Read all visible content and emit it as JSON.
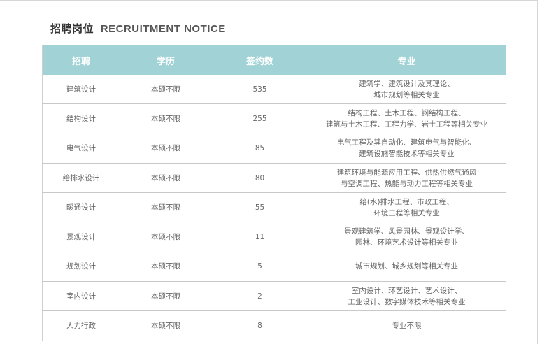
{
  "title_cn": "招聘岗位",
  "title_en": "RECRUITMENT NOTICE",
  "header_color": "#a1d3d6",
  "columns": [
    "招聘",
    "学历",
    "签约数",
    "专业"
  ],
  "rows": [
    {
      "position": "建筑设计",
      "education": "本硕不限",
      "count": "535",
      "major": [
        "建筑学、建筑设计及其理论、",
        "城市规划等相关专业"
      ]
    },
    {
      "position": "结构设计",
      "education": "本硕不限",
      "count": "255",
      "major": [
        "结构工程、土木工程、钢结构工程、",
        "建筑与土木工程、工程力学、岩土工程等相关专业"
      ]
    },
    {
      "position": "电气设计",
      "education": "本硕不限",
      "count": "85",
      "major": [
        "电气工程及其自动化、建筑电气与智能化、",
        "建筑设施智能技术等相关专业"
      ]
    },
    {
      "position": "给排水设计",
      "education": "本硕不限",
      "count": "80",
      "major": [
        "建筑环境与能源应用工程、供热供燃气通风",
        "与空调工程、热能与动力工程等相关专业"
      ]
    },
    {
      "position": "暖通设计",
      "education": "本硕不限",
      "count": "55",
      "major": [
        "给(水)排水工程、市政工程、",
        "环境工程等相关专业"
      ]
    },
    {
      "position": "景观设计",
      "education": "本硕不限",
      "count": "11",
      "major": [
        "景观建筑学、风景园林、景观设计学、",
        "园林、环境艺术设计等相关专业"
      ]
    },
    {
      "position": "规划设计",
      "education": "本硕不限",
      "count": "5",
      "major": [
        "城市规划、城乡规划等相关专业"
      ]
    },
    {
      "position": "室内设计",
      "education": "本硕不限",
      "count": "2",
      "major": [
        "室内设计、环艺设计、艺术设计、",
        "工业设计、数字媒体技术等相关专业"
      ]
    },
    {
      "position": "人力行政",
      "education": "本硕不限",
      "count": "8",
      "major": [
        "专业不限"
      ]
    }
  ]
}
